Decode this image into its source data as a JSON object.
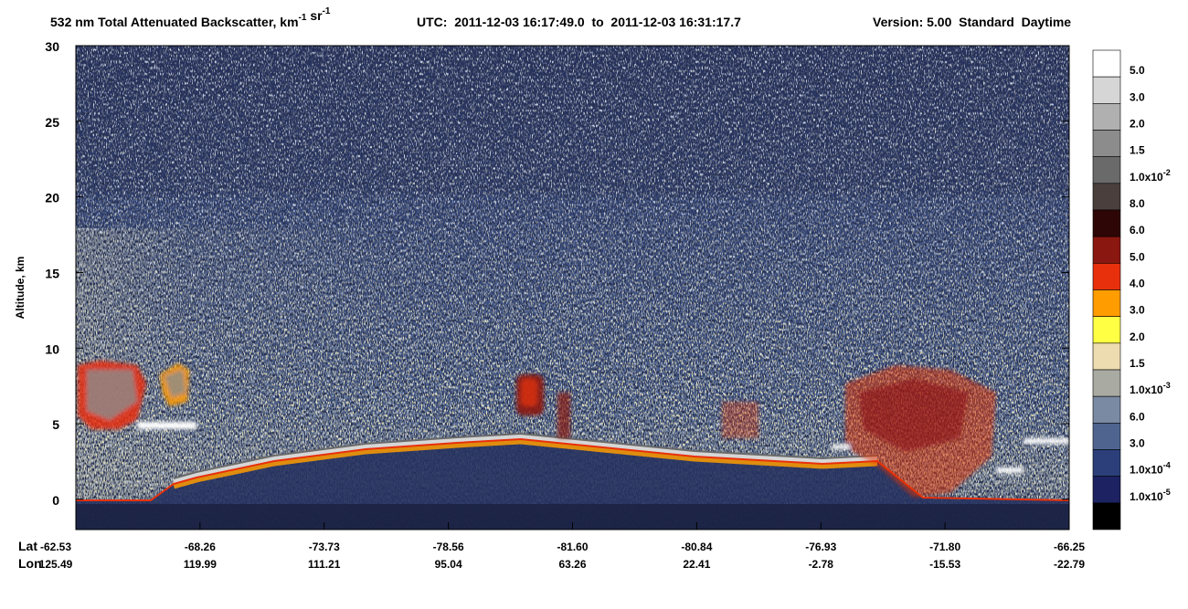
{
  "chart_data": {
    "type": "curtain",
    "title": [
      {
        "text": "532 nm Total Attenuated Backscatter, km"
      },
      {
        "sup": "-1"
      },
      {
        "text": " sr"
      },
      {
        "sup": "-1"
      }
    ],
    "utc": "UTC:  2011-12-03 16:17:49.0  to  2011-12-03 16:31:17.7",
    "version": "Version: 5.00  Standard  Daytime",
    "ylabel": "Altitude, km",
    "ylim": [
      -2,
      30
    ],
    "yticks": [
      0,
      5,
      10,
      15,
      20,
      25,
      30
    ],
    "lat_label": "Lat",
    "lon_label": "Lon",
    "lat": [
      "-62.53",
      "-68.26",
      "-73.73",
      "-78.56",
      "-81.60",
      "-80.84",
      "-76.93",
      "-71.80",
      "-66.25"
    ],
    "lon": [
      "125.49",
      "119.99",
      "111.21",
      "95.04",
      "63.26",
      "22.41",
      "-2.78",
      "-15.53",
      "-22.79"
    ],
    "colorbar": {
      "colors": [
        "#ffffff",
        "#d6d6d6",
        "#b0b0b0",
        "#8c8c8c",
        "#6a6a6a",
        "#4a3f3c",
        "#2e0606",
        "#8a1710",
        "#e8300c",
        "#ff9c00",
        "#ffff44",
        "#ecdcb0",
        "#a9aaa2",
        "#7a8aa2",
        "#4f6590",
        "#2c3f7a",
        "#1d2262",
        "#000000"
      ],
      "labels": [
        "5.0",
        "3.0",
        "2.0",
        "1.5",
        {
          "text": "1.0x10",
          "sup": "-2"
        },
        "8.0",
        "6.0",
        "5.0",
        "4.0",
        "3.0",
        "2.0",
        "1.5",
        {
          "text": "1.0x10",
          "sup": "-3"
        },
        "6.0",
        "3.0",
        {
          "text": "1.0x10",
          "sup": "-4"
        },
        {
          "text": "1.0x10",
          "sup": "-5"
        }
      ]
    }
  }
}
